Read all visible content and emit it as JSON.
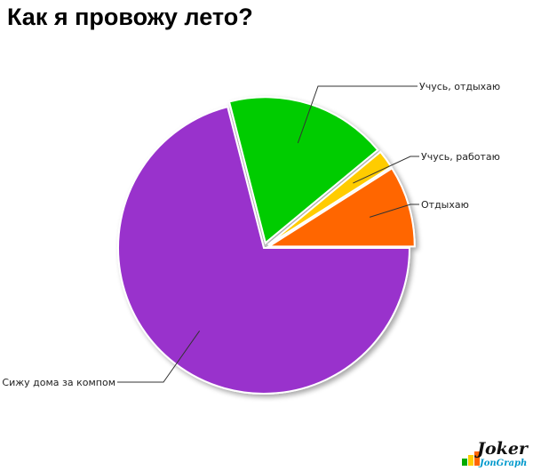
{
  "chart_data": {
    "type": "pie",
    "title": "Как я провожу лето?",
    "slices": [
      {
        "label": "Сижу дома за компом",
        "value": 71,
        "color": "#9933CC",
        "exploded": false
      },
      {
        "label": "Учусь, отдыхаю",
        "value": 18,
        "color": "#00CC00",
        "exploded": true
      },
      {
        "label": "Учусь, работаю",
        "value": 2,
        "color": "#FFCC00",
        "exploded": true
      },
      {
        "label": "Отдыхаю",
        "value": 9,
        "color": "#FF6600",
        "exploded": true
      }
    ],
    "start_angle_deg": 0,
    "direction": "clockwise",
    "legend": "none",
    "labels": "outside-with-leaders"
  },
  "watermark": {
    "text": "Joker",
    "subtext": "JonGraph"
  }
}
